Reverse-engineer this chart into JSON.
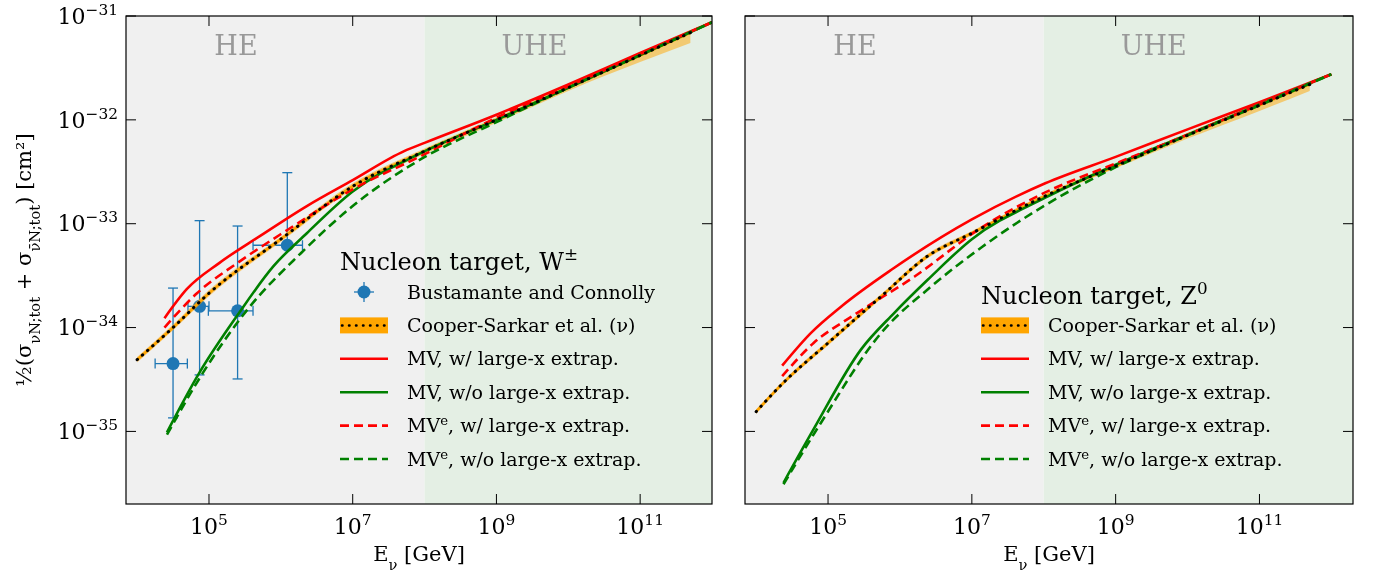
{
  "chart_data": [
    {
      "type": "line",
      "log": "xy",
      "grid": false,
      "legend": "bottom right",
      "legend_title": "Nucleon target, W$^{±}$",
      "xlabel": "E$_{ν}$ [GeV]",
      "ylabel": "½(σ$_{νN;tot}$ + σ$_{ν̄N;tot}$) [cm²]",
      "xlim": [
        7000,
        1000000000000.0
      ],
      "ylim": [
        2e-36,
        1e-31
      ],
      "xticks": [
        {
          "value": 100000.0,
          "label": "10$^{5}$"
        },
        {
          "value": 10000000.0,
          "label": "10$^{7}$"
        },
        {
          "value": 1000000000.0,
          "label": "10$^{9}$"
        },
        {
          "value": 100000000000.0,
          "label": "10$^{11}$"
        }
      ],
      "yticks": [
        {
          "value": 1e-35,
          "label": "10$^{−35}$"
        },
        {
          "value": 1e-34,
          "label": "10$^{−34}$"
        },
        {
          "value": 1e-33,
          "label": "10$^{−33}$"
        },
        {
          "value": 1e-32,
          "label": "10$^{−32}$"
        },
        {
          "value": 1e-31,
          "label": "10$^{−31}$"
        }
      ],
      "bands": [
        {
          "axis": "x",
          "from": 7000,
          "to": 100000000.0,
          "label": "HE",
          "color": "#f0f0f0"
        },
        {
          "axis": "x",
          "from": 100000000.0,
          "to": 1000000000000.0,
          "label": "UHE",
          "color": "#e4efe4"
        }
      ],
      "series": [
        {
          "name": "Bustamante and Connolly",
          "type": "scatter",
          "marker": "circle",
          "color": "#1f77b4",
          "x": [
            31600,
            74000,
            250000,
            1230000
          ],
          "values": [
            4.5e-35,
            1.6e-34,
            1.45e-34,
            6.2e-34
          ],
          "errors": [
            [
              1.35e-35,
              2.4e-34
            ],
            [
              3.5e-35,
              1.07e-33
            ],
            [
              3.2e-35,
              9.5e-34
            ],
            [
              6.2e-34,
              3.1e-33
            ]
          ],
          "xerrors": [
            [
              17800,
              50000
            ],
            [
              51000,
              100000
            ],
            [
              98000,
              410000
            ],
            [
              410000,
              2000000
            ]
          ]
        },
        {
          "name": "Cooper-Sarkar et al. (ν)",
          "line_style": "solid",
          "color": "#ffa500",
          "x": [
            10000.0,
            31600.0,
            100000.0,
            1000000.0,
            10000000.0,
            100000000.0,
            1000000000.0,
            10000000000.0,
            100000000000.0,
            500000000000.0
          ],
          "values": [
            4.9e-35,
            1e-34,
            2.14e-34,
            7.1e-34,
            2.29e-33,
            5e-33,
            1e-32,
            2.04e-32,
            4.17e-32,
            6.9e-32
          ],
          "lower": [
            4.6e-35,
            9.4e-35,
            2e-34,
            6.7e-34,
            2.15e-33,
            4.7e-33,
            9.4e-33,
            1.9e-32,
            3.6e-32,
            5.5e-32
          ],
          "upper": [
            5.2e-35,
            1.07e-34,
            2.3e-34,
            7.5e-34,
            2.45e-33,
            5.3e-33,
            1.06e-32,
            2.15e-32,
            4.4e-32,
            7.3e-32
          ]
        },
        {
          "name": "MV, w/ large-x extrap.",
          "line_style": "solid",
          "color": "#ff0000",
          "x": [
            24000,
            49000,
            140000,
            510000,
            2300000,
            10000000.0,
            52000000.0,
            100000000.0,
            1000000000.0,
            10000000000.0,
            100000000000.0,
            1000000000000.0
          ],
          "values": [
            1.23e-34,
            2.34e-34,
            4.2e-34,
            7.6e-34,
            1.48e-33,
            2.63e-33,
            5e-33,
            6e-33,
            1.12e-32,
            2.19e-32,
            4.4e-32,
            8.7e-32
          ]
        },
        {
          "name": "MV, w/o large-x extrap.",
          "line_style": "solid",
          "color": "#008000",
          "x": [
            26000,
            74000,
            250000,
            790000,
            2300000,
            10000000.0,
            90000000.0,
            1000000000.0,
            10000000000.0,
            100000000000.0,
            1000000000000.0
          ],
          "values": [
            9.8e-36,
            3.7e-35,
            1.32e-34,
            3.9e-34,
            8.1e-34,
            2.04e-33,
            4.8e-33,
            1e-32,
            2.04e-32,
            4.2e-32,
            8.7e-32
          ]
        },
        {
          "name": "MV$^{e}$, w/ large-x extrap.",
          "line_style": "dashed",
          "color": "#ff0000",
          "x": [
            24000,
            68000,
            250000,
            1230000,
            10000000.0,
            90000000.0,
            1000000000.0,
            10000000000.0,
            100000000000.0,
            1000000000000.0
          ],
          "values": [
            1e-34,
            2.14e-34,
            4.2e-34,
            8.7e-34,
            2.14e-33,
            4.5e-33,
            1.05e-32,
            2.1e-32,
            4.3e-32,
            8.7e-32
          ]
        },
        {
          "name": "MV$^{e}$, w/o large-x extrap.",
          "line_style": "dashed",
          "color": "#008000",
          "x": [
            26000,
            83000,
            340000,
            1900000,
            10000000.0,
            90000000.0,
            1000000000.0,
            10000000000.0,
            100000000000.0,
            1000000000000.0
          ],
          "values": [
            9.3e-36,
            3.7e-35,
            1.48e-34,
            5.2e-34,
            1.48e-33,
            4.2e-33,
            9.5e-33,
            2.04e-32,
            4.2e-32,
            8.7e-32
          ]
        },
        {
          "line_style": "dotted",
          "color": "#000000",
          "x": [
            10000.0,
            31600.0,
            100000.0,
            1000000.0,
            10000000.0,
            100000000.0,
            1000000000.0,
            10000000000.0,
            100000000000.0,
            500000000000.0
          ],
          "values": [
            4.9e-35,
            1e-34,
            2.14e-34,
            7.1e-34,
            2.29e-33,
            5e-33,
            1e-32,
            2.04e-32,
            4.17e-32,
            6.9e-32
          ]
        }
      ]
    },
    {
      "type": "line",
      "log": "xy",
      "grid": false,
      "legend": "bottom right",
      "legend_title": "Nucleon target, Z$^{0}$",
      "xlabel": "E$_{ν}$ [GeV]",
      "tick_labels": "x",
      "xlim": [
        7000,
        2000000000000.0
      ],
      "ylim": [
        2e-36,
        1e-31
      ],
      "xticks": [
        {
          "value": 100000.0,
          "label": "10$^{5}$"
        },
        {
          "value": 10000000.0,
          "label": "10$^{7}$"
        },
        {
          "value": 1000000000.0,
          "label": "10$^{9}$"
        },
        {
          "value": 100000000000.0,
          "label": "10$^{11}$"
        }
      ],
      "yticks": [
        {
          "value": 1e-35,
          "label": null
        },
        {
          "value": 1e-34,
          "label": null
        },
        {
          "value": 1e-33,
          "label": null
        },
        {
          "value": 1e-32,
          "label": null
        },
        {
          "value": 1e-31,
          "label": null
        }
      ],
      "bands": [
        {
          "axis": "x",
          "from": 7000,
          "to": 100000000.0,
          "label": "HE",
          "color": "#f0f0f0"
        },
        {
          "axis": "x",
          "from": 100000000.0,
          "to": 2000000000000.0,
          "label": "UHE",
          "color": "#e4efe4"
        }
      ],
      "series": [
        {
          "name": "Cooper-Sarkar et al. (ν)",
          "line_style": "solid",
          "color": "#ffa500",
          "x": [
            10000.0,
            24000.0,
            100000.0,
            550000,
            2450000,
            10000000.0,
            100000000.0,
            1000000000.0,
            10000000000.0,
            100000000000.0,
            500000000000.0
          ],
          "values": [
            1.55e-35,
            2.95e-35,
            7.1e-35,
            2e-34,
            4.9e-34,
            8.1e-34,
            1.82e-33,
            3.6e-33,
            7.1e-33,
            1.38e-32,
            2.19e-32
          ],
          "lower": [
            1.47e-35,
            2.8e-35,
            6.7e-35,
            1.9e-34,
            4.65e-34,
            7.7e-34,
            1.73e-33,
            3.42e-33,
            6.6e-33,
            1.22e-32,
            1.9e-32
          ],
          "upper": [
            1.63e-35,
            3.1e-35,
            7.5e-35,
            2.1e-34,
            5.15e-34,
            8.5e-34,
            1.91e-33,
            3.78e-33,
            7.5e-33,
            1.45e-32,
            2.3e-32
          ]
        },
        {
          "name": "MV, w/ large-x extrap.",
          "line_style": "solid",
          "color": "#ff0000",
          "x": [
            23000,
            58000,
            150000,
            760000,
            10000000.0,
            105000000.0,
            1000000000.0,
            10000000000.0,
            100000000000.0,
            1000000000000.0
          ],
          "values": [
            4.3e-35,
            8.9e-35,
            1.58e-34,
            3.6e-34,
            1.1e-33,
            2.45e-33,
            4.4e-33,
            8.1e-33,
            1.48e-32,
            2.75e-32
          ]
        },
        {
          "name": "MV, w/o large-x extrap.",
          "line_style": "solid",
          "color": "#008000",
          "x": [
            24000,
            63000,
            290000,
            830000,
            2450000,
            10000000.0,
            105000000.0,
            1000000000.0,
            10000000000.0,
            100000000000.0,
            1000000000000.0
          ],
          "values": [
            3.2e-36,
            1.05e-35,
            6.2e-35,
            1.38e-34,
            2.9e-34,
            7.1e-34,
            1.78e-33,
            3.7e-33,
            7.2e-33,
            1.41e-32,
            2.75e-32
          ]
        },
        {
          "name": "MV$^{e}$, w/ large-x extrap.",
          "line_style": "dashed",
          "color": "#ff0000",
          "x": [
            23000,
            63000,
            230000,
            1600000,
            14000000.0,
            105000000.0,
            1000000000.0,
            10000000000.0,
            100000000000.0,
            1000000000000.0
          ],
          "values": [
            3.4e-35,
            7.1e-35,
            1.32e-34,
            3.1e-34,
            9.3e-34,
            2e-33,
            3.8e-33,
            7.2e-33,
            1.41e-32,
            2.75e-32
          ]
        },
        {
          "name": "MV$^{e}$, w/o large-x extrap.",
          "line_style": "dashed",
          "color": "#008000",
          "x": [
            24000,
            79000,
            550000,
            2750000,
            14000000.0,
            105000000.0,
            1000000000.0,
            10000000000.0,
            100000000000.0,
            1000000000000.0
          ],
          "values": [
            3.1e-36,
            1.2e-35,
            8.9e-35,
            2.5e-34,
            6e-34,
            1.51e-33,
            3.5e-33,
            7.1e-33,
            1.38e-32,
            2.75e-32
          ]
        },
        {
          "line_style": "dotted",
          "color": "#000000",
          "x": [
            10000.0,
            24000.0,
            100000.0,
            550000,
            2450000,
            10000000.0,
            100000000.0,
            1000000000.0,
            10000000000.0,
            100000000000.0,
            500000000000.0
          ],
          "values": [
            1.55e-35,
            2.95e-35,
            7.1e-35,
            2e-34,
            4.9e-34,
            8.1e-34,
            1.82e-33,
            3.6e-33,
            7.1e-33,
            1.38e-32,
            2.19e-32
          ]
        }
      ]
    }
  ]
}
